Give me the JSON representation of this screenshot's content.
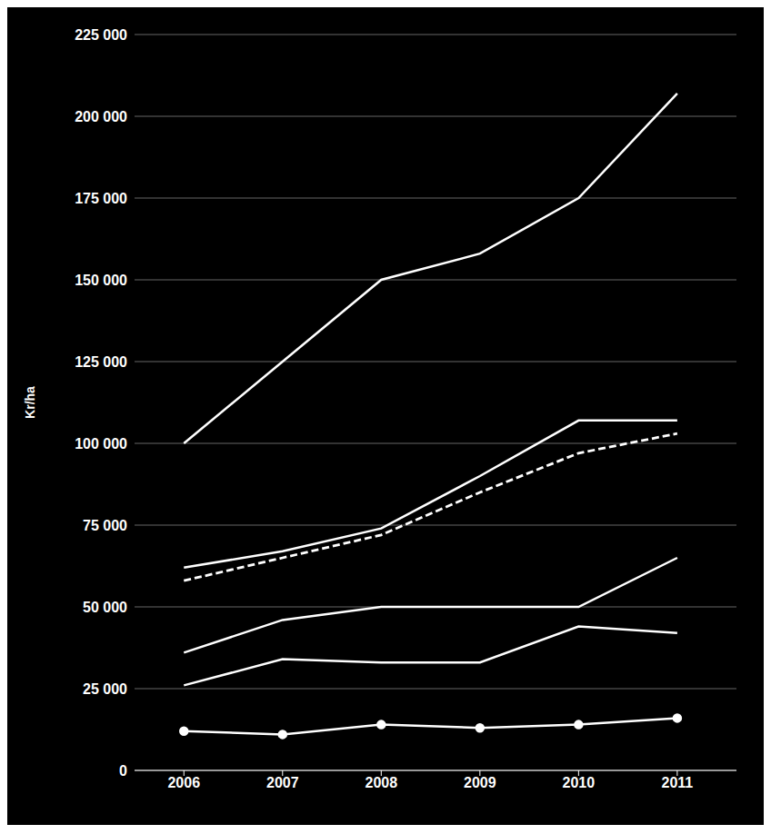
{
  "chart_data": {
    "type": "line",
    "x": [
      2006,
      2007,
      2008,
      2009,
      2010,
      2011
    ],
    "series": [
      {
        "color": "#ffffff",
        "line_style": "solid",
        "values": [
          100000,
          125000,
          150000,
          158000,
          175000,
          207000
        ]
      },
      {
        "color": "#ffffff",
        "line_style": "solid",
        "values": [
          62000,
          67000,
          74000,
          90000,
          107000,
          107000
        ]
      },
      {
        "color": "#ffffff",
        "line_style": "dashed",
        "values": [
          58000,
          65000,
          72000,
          85000,
          97000,
          103000
        ]
      },
      {
        "color": "#ffffff",
        "line_style": "solid",
        "values": [
          36000,
          46000,
          50000,
          50000,
          50000,
          65000
        ]
      },
      {
        "color": "#ffffff",
        "line_style": "solid",
        "values": [
          26000,
          34000,
          33000,
          33000,
          44000,
          42000
        ]
      },
      {
        "color": "#ffffff",
        "line_style": "solid",
        "marker": "circle",
        "values": [
          12000,
          11000,
          14000,
          13000,
          14000,
          16000
        ]
      }
    ],
    "ylabel": "Kr/ha",
    "xlim": [
      2005.5,
      2011.6
    ],
    "xticks": [
      2006,
      2007,
      2008,
      2009,
      2010,
      2011
    ],
    "ylim": [
      0,
      225000
    ],
    "yticks": [
      0,
      {
        "value": 25000,
        "label": "25 000"
      },
      {
        "value": 50000,
        "label": "50 000"
      },
      {
        "value": 75000,
        "label": "75 000"
      },
      {
        "value": 100000,
        "label": "100 000"
      },
      {
        "value": 125000,
        "label": "125 000"
      },
      {
        "value": 150000,
        "label": "150 000"
      },
      {
        "value": 175000,
        "label": "175 000"
      },
      {
        "value": 200000,
        "label": "200 000"
      },
      {
        "value": 225000,
        "label": "225 000"
      }
    ],
    "grid": "y"
  }
}
